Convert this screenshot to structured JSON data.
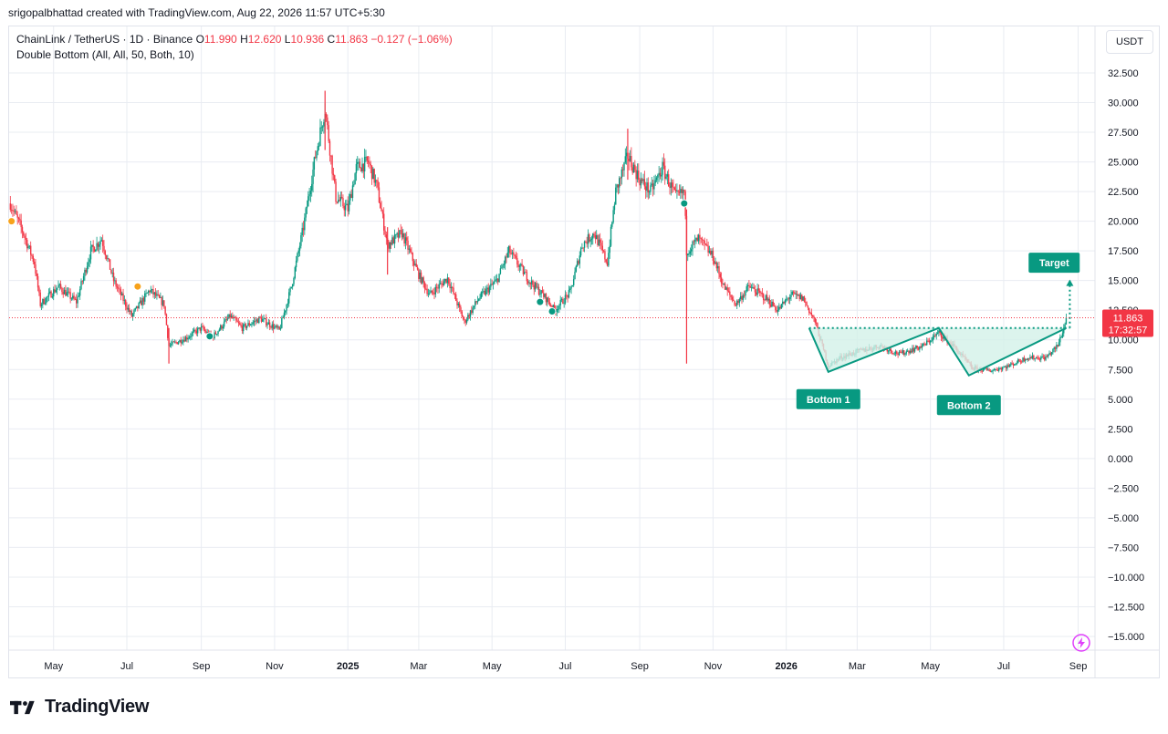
{
  "header": {
    "attribution": "srigopalbhattad created with TradingView.com, Aug 22, 2026 11:57 UTC+5:30"
  },
  "legend": {
    "symbol": "ChainLink / TetherUS · 1D · Binance",
    "o_label": "O",
    "o_value": "11.990",
    "h_label": "H",
    "h_value": "12.620",
    "l_label": "L",
    "l_value": "10.936",
    "c_label": "C",
    "c_value": "11.863",
    "change": "−0.127 (−1.06%)",
    "indicator": "Double Bottom (All, All, 50, Both, 10)"
  },
  "unit_button": "USDT",
  "footer": {
    "brand": "TradingView"
  },
  "icons": {
    "logo": "tradingview-logo-icon",
    "flash": "flash-icon"
  },
  "colors": {
    "up": "#089981",
    "down": "#f23645",
    "pattern": "#089981",
    "pattern_fill": "#d3f1e9",
    "grid": "#e9ecf2",
    "last_price_bg": "#f23645",
    "dot_orange": "#f7a21b"
  },
  "chart_data": {
    "type": "candlestick",
    "symbol": "ChainLink / TetherUS",
    "interval": "1D",
    "exchange": "Binance",
    "ylim": [
      -15,
      32.5
    ],
    "y_ticks": [
      "32.500",
      "30.000",
      "27.500",
      "25.000",
      "22.500",
      "20.000",
      "17.500",
      "15.000",
      "12.500",
      "10.000",
      "7.500",
      "5.000",
      "2.500",
      "0.000",
      "−2.500",
      "−5.000",
      "−7.500",
      "−10.000",
      "−12.500",
      "−15.000"
    ],
    "y_tick_values": [
      32.5,
      30,
      27.5,
      25,
      22.5,
      20,
      17.5,
      15,
      12.5,
      10,
      7.5,
      5,
      2.5,
      0,
      -2.5,
      -5,
      -7.5,
      -10,
      -12.5,
      -15
    ],
    "x_range": [
      "2024-03-25",
      "2026-09-15"
    ],
    "x_ticks": [
      {
        "label": "May",
        "date": "2024-05-01",
        "bold": false
      },
      {
        "label": "Jul",
        "date": "2024-07-01",
        "bold": false
      },
      {
        "label": "Sep",
        "date": "2024-09-01",
        "bold": false
      },
      {
        "label": "Nov",
        "date": "2024-11-01",
        "bold": false
      },
      {
        "label": "2025",
        "date": "2025-01-01",
        "bold": true
      },
      {
        "label": "Mar",
        "date": "2025-03-01",
        "bold": false
      },
      {
        "label": "May",
        "date": "2025-05-01",
        "bold": false
      },
      {
        "label": "Jul",
        "date": "2025-07-01",
        "bold": false
      },
      {
        "label": "Sep",
        "date": "2025-09-01",
        "bold": false
      },
      {
        "label": "Nov",
        "date": "2025-11-01",
        "bold": false
      },
      {
        "label": "2026",
        "date": "2026-01-01",
        "bold": true
      },
      {
        "label": "Mar",
        "date": "2026-03-01",
        "bold": false
      },
      {
        "label": "May",
        "date": "2026-05-01",
        "bold": false
      },
      {
        "label": "Jul",
        "date": "2026-07-01",
        "bold": false
      },
      {
        "label": "Sep",
        "date": "2026-09-01",
        "bold": false
      }
    ],
    "price_path": [
      [
        "2024-03-26",
        21.5
      ],
      [
        "2024-04-05",
        19.2
      ],
      [
        "2024-04-15",
        16.5
      ],
      [
        "2024-04-20",
        13.0
      ],
      [
        "2024-05-05",
        14.5
      ],
      [
        "2024-05-20",
        13.2
      ],
      [
        "2024-06-01",
        17.5
      ],
      [
        "2024-06-10",
        18.5
      ],
      [
        "2024-06-20",
        15.0
      ],
      [
        "2024-07-05",
        12.0
      ],
      [
        "2024-07-20",
        14.2
      ],
      [
        "2024-08-01",
        13.0
      ],
      [
        "2024-08-05",
        9.5
      ],
      [
        "2024-08-20",
        10.2
      ],
      [
        "2024-09-01",
        11.0
      ],
      [
        "2024-09-10",
        10.2
      ],
      [
        "2024-09-25",
        12.0
      ],
      [
        "2024-10-05",
        11.0
      ],
      [
        "2024-10-20",
        11.8
      ],
      [
        "2024-11-05",
        10.8
      ],
      [
        "2024-11-15",
        14.5
      ],
      [
        "2024-11-25",
        19.5
      ],
      [
        "2024-12-05",
        25.5
      ],
      [
        "2024-12-13",
        29.5
      ],
      [
        "2024-12-22",
        22.0
      ],
      [
        "2025-01-01",
        21.0
      ],
      [
        "2025-01-08",
        24.5
      ],
      [
        "2025-01-18",
        25.0
      ],
      [
        "2025-01-25",
        23.0
      ],
      [
        "2025-02-03",
        18.0
      ],
      [
        "2025-02-15",
        19.0
      ],
      [
        "2025-03-01",
        15.5
      ],
      [
        "2025-03-10",
        13.8
      ],
      [
        "2025-03-25",
        15.2
      ],
      [
        "2025-04-08",
        11.5
      ],
      [
        "2025-04-20",
        13.5
      ],
      [
        "2025-05-05",
        15.0
      ],
      [
        "2025-05-15",
        17.5
      ],
      [
        "2025-06-01",
        15.0
      ],
      [
        "2025-06-15",
        13.5
      ],
      [
        "2025-06-22",
        12.5
      ],
      [
        "2025-07-05",
        14.0
      ],
      [
        "2025-07-15",
        18.0
      ],
      [
        "2025-07-25",
        19.0
      ],
      [
        "2025-08-05",
        16.5
      ],
      [
        "2025-08-12",
        22.5
      ],
      [
        "2025-08-22",
        25.5
      ],
      [
        "2025-09-01",
        23.5
      ],
      [
        "2025-09-10",
        22.5
      ],
      [
        "2025-09-20",
        24.5
      ],
      [
        "2025-10-01",
        22.0
      ],
      [
        "2025-10-08",
        22.5
      ],
      [
        "2025-10-10",
        17.5
      ],
      [
        "2025-10-20",
        18.5
      ],
      [
        "2025-11-01",
        17.0
      ],
      [
        "2025-11-10",
        14.5
      ],
      [
        "2025-11-20",
        13.0
      ],
      [
        "2025-12-01",
        14.5
      ],
      [
        "2025-12-15",
        13.5
      ],
      [
        "2025-12-25",
        12.5
      ],
      [
        "2026-01-05",
        13.8
      ],
      [
        "2026-01-15",
        13.5
      ],
      [
        "2026-01-25",
        11.5
      ],
      [
        "2026-02-05",
        7.8
      ],
      [
        "2026-02-15",
        8.5
      ],
      [
        "2026-03-01",
        9.0
      ],
      [
        "2026-03-20",
        9.5
      ],
      [
        "2026-04-05",
        8.8
      ],
      [
        "2026-04-25",
        9.5
      ],
      [
        "2026-05-08",
        10.6
      ],
      [
        "2026-05-20",
        9.5
      ],
      [
        "2026-06-05",
        7.6
      ],
      [
        "2026-06-20",
        7.4
      ],
      [
        "2026-07-05",
        7.8
      ],
      [
        "2026-07-20",
        8.5
      ],
      [
        "2026-08-05",
        8.5
      ],
      [
        "2026-08-15",
        9.5
      ],
      [
        "2026-08-20",
        11.0
      ],
      [
        "2026-08-22",
        11.863
      ]
    ],
    "spikes": [
      {
        "date": "2024-12-13",
        "high": 31.0,
        "low": 26.0
      },
      {
        "date": "2025-02-03",
        "high": 19.5,
        "low": 15.5
      },
      {
        "date": "2025-08-22",
        "high": 27.8,
        "low": 23.5
      },
      {
        "date": "2025-10-10",
        "high": 21.0,
        "low": 8.0
      },
      {
        "date": "2024-08-05",
        "high": 11.0,
        "low": 8.0
      }
    ],
    "markers": [
      {
        "date": "2024-03-27",
        "value": 20.0,
        "color": "#f7a21b"
      },
      {
        "date": "2024-07-10",
        "value": 14.5,
        "color": "#f7a21b"
      },
      {
        "date": "2024-09-08",
        "value": 10.3,
        "color": "#089981"
      },
      {
        "date": "2025-06-10",
        "value": 13.2,
        "color": "#089981"
      },
      {
        "date": "2025-06-20",
        "value": 12.4,
        "color": "#089981"
      },
      {
        "date": "2025-10-08",
        "value": 21.5,
        "color": "#089981"
      }
    ],
    "pattern": {
      "name": "Double Bottom",
      "points": [
        {
          "date": "2026-01-20",
          "value": 11.0
        },
        {
          "date": "2026-02-05",
          "value": 7.3
        },
        {
          "date": "2026-05-08",
          "value": 11.0
        },
        {
          "date": "2026-06-02",
          "value": 7.0
        },
        {
          "date": "2026-08-22",
          "value": 11.0
        }
      ],
      "neckline": 11.0,
      "target": 15.0,
      "labels": [
        {
          "text": "Bottom 1",
          "date": "2026-02-05",
          "value": 5.0
        },
        {
          "text": "Bottom 2",
          "date": "2026-06-02",
          "value": 4.5
        },
        {
          "text": "Target",
          "date": "2026-08-12",
          "value": 16.5
        }
      ]
    },
    "last_price": {
      "value": 11.863,
      "label": "11.863",
      "countdown": "17:32:57"
    }
  }
}
